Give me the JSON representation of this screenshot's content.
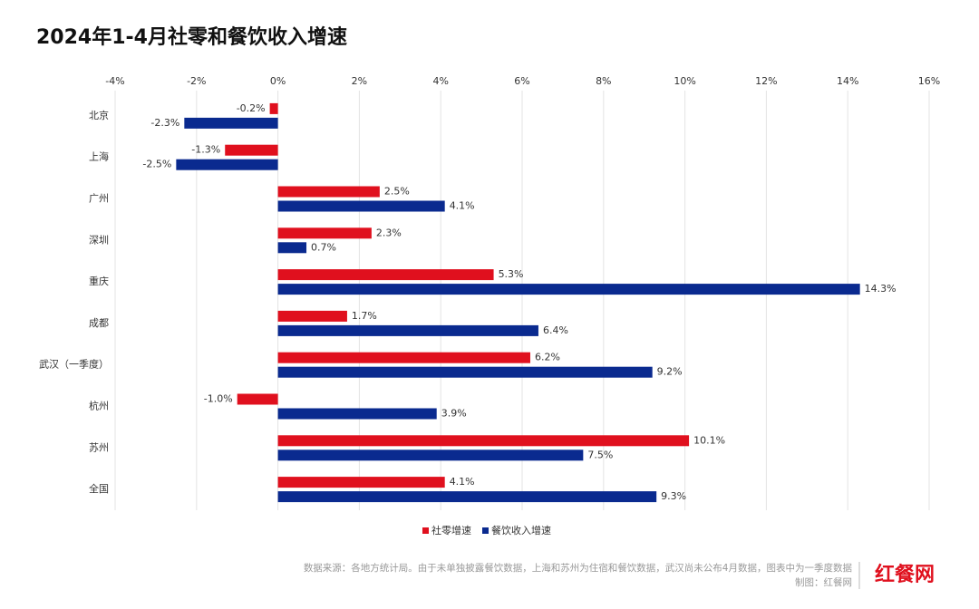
{
  "chart_data": {
    "type": "hbar",
    "title": "2024年1-4月社零和餐饮收入增速",
    "categories": [
      "北京",
      "上海",
      "广州",
      "深圳",
      "重庆",
      "成都",
      "武汉（一季度）",
      "杭州",
      "苏州",
      "全国"
    ],
    "series": [
      {
        "name": "社零增速",
        "color": "#e0101e",
        "values": [
          -0.2,
          -1.3,
          2.5,
          2.3,
          5.3,
          1.7,
          6.2,
          -1.0,
          10.1,
          4.1
        ],
        "value_labels": [
          "-0.2%",
          "-1.3%",
          "2.5%",
          "2.3%",
          "5.3%",
          "1.7%",
          "6.2%",
          "-1.0%",
          "10.1%",
          "4.1%"
        ]
      },
      {
        "name": "餐饮收入增速",
        "color": "#0a2a8f",
        "values": [
          -2.3,
          -2.5,
          4.1,
          0.7,
          14.3,
          6.4,
          9.2,
          3.9,
          7.5,
          9.3
        ],
        "value_labels": [
          "-2.3%",
          "-2.5%",
          "4.1%",
          "0.7%",
          "14.3%",
          "6.4%",
          "9.2%",
          "3.9%",
          "7.5%",
          "9.3%"
        ]
      }
    ],
    "xlim": [
      -4,
      16
    ],
    "xticks": [
      {
        "value": -4,
        "label": "-4%"
      },
      {
        "value": -2,
        "label": "-2%"
      },
      {
        "value": 0,
        "label": "0%"
      },
      {
        "value": 2,
        "label": "2%"
      },
      {
        "value": 4,
        "label": "4%"
      },
      {
        "value": 6,
        "label": "6%"
      },
      {
        "value": 8,
        "label": "8%"
      },
      {
        "value": 10,
        "label": "10%"
      },
      {
        "value": 12,
        "label": "12%"
      },
      {
        "value": 14,
        "label": "14%"
      },
      {
        "value": 16,
        "label": "16%"
      }
    ],
    "grid": true,
    "source": "数据来源：各地方统计局。由于未单独披露餐饮数据，上海和苏州为住宿和餐饮数据，武汉尚未公布4月数据，图表中为一季度数据",
    "credit": "制图：红餐网",
    "brand": "红餐网"
  }
}
